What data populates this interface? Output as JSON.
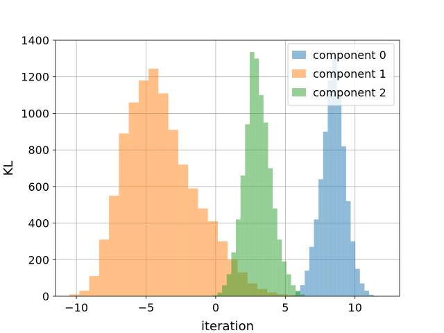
{
  "chart_data": {
    "type": "histogram",
    "title": "",
    "xlabel": "iteration",
    "ylabel": "KL",
    "xlim": [
      -11.5,
      13.2
    ],
    "ylim": [
      0,
      1400
    ],
    "xticks": [
      -10,
      -5,
      0,
      5,
      10
    ],
    "xtick_labels": [
      "−10",
      "−5",
      "0",
      "5",
      "10"
    ],
    "yticks": [
      0,
      200,
      400,
      600,
      800,
      1000,
      1200,
      1400
    ],
    "ytick_labels": [
      "0",
      "200",
      "400",
      "600",
      "800",
      "1000",
      "1200",
      "1400"
    ],
    "grid": true,
    "legend_position": "top-right",
    "series": [
      {
        "name": "component 0",
        "color": "#1f77b4",
        "alpha": 0.5,
        "bin_edges": [
          5.4,
          5.73,
          6.06,
          6.39,
          6.72,
          7.05,
          7.38,
          7.71,
          8.04,
          8.37,
          8.7,
          9.03,
          9.36,
          9.69,
          10.02,
          10.35,
          10.68,
          11.01,
          11.34
        ],
        "counts": [
          5,
          25,
          60,
          140,
          270,
          420,
          640,
          900,
          1180,
          1300,
          1100,
          820,
          520,
          300,
          150,
          70,
          30,
          8
        ]
      },
      {
        "name": "component 1",
        "color": "#ff7f0e",
        "alpha": 0.5,
        "bin_edges": [
          -10.5,
          -9.79,
          -9.08,
          -8.37,
          -7.66,
          -6.95,
          -6.24,
          -5.53,
          -4.82,
          -4.11,
          -3.4,
          -2.69,
          -1.98,
          -1.27,
          -0.56,
          0.15,
          0.86,
          1.57,
          2.28,
          2.99,
          3.7,
          4.41,
          5.12,
          5.83,
          6.54
        ],
        "counts": [
          10,
          30,
          110,
          310,
          550,
          890,
          1060,
          1180,
          1245,
          1110,
          910,
          720,
          590,
          480,
          410,
          300,
          200,
          130,
          70,
          40,
          20,
          10,
          5,
          2
        ]
      },
      {
        "name": "component 2",
        "color": "#2ca02c",
        "alpha": 0.5,
        "bin_edges": [
          -0.2,
          0.13,
          0.46,
          0.79,
          1.12,
          1.45,
          1.78,
          2.11,
          2.44,
          2.77,
          3.1,
          3.43,
          3.76,
          4.09,
          4.42,
          4.75,
          5.08,
          5.41,
          5.74,
          6.07,
          6.4
        ],
        "counts": [
          5,
          20,
          60,
          120,
          240,
          420,
          660,
          940,
          1335,
          1300,
          1100,
          950,
          700,
          480,
          310,
          190,
          120,
          60,
          30,
          10
        ]
      }
    ]
  }
}
